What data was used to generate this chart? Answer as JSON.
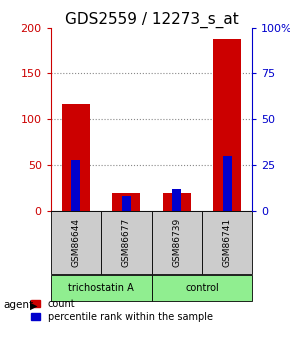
{
  "title": "GDS2559 / 12273_s_at",
  "samples": [
    "GSM86644",
    "GSM86677",
    "GSM86739",
    "GSM86741"
  ],
  "red_values": [
    117,
    20,
    20,
    188
  ],
  "blue_values_pct": [
    28,
    8,
    12,
    30
  ],
  "left_ylim": [
    0,
    200
  ],
  "left_yticks": [
    0,
    50,
    100,
    150,
    200
  ],
  "right_ylim": [
    0,
    100
  ],
  "right_yticks": [
    0,
    25,
    50,
    75,
    100
  ],
  "right_yticklabels": [
    "0",
    "25",
    "50",
    "75",
    "100%"
  ],
  "agents": [
    {
      "label": "trichostatin A"
    },
    {
      "label": "control"
    }
  ],
  "agent_label": "agent",
  "red_bar_width": 0.55,
  "blue_bar_width": 0.18,
  "red_color": "#CC0000",
  "blue_color": "#0000CC",
  "left_tick_color": "#CC0000",
  "right_tick_color": "#0000CC",
  "title_fontsize": 11,
  "tick_fontsize": 8,
  "legend_fontsize": 7,
  "sample_box_color": "#CCCCCC",
  "agent_box_color": "#90EE90",
  "dotted_line_color": "#888888",
  "grid_yticks": [
    50,
    100,
    150
  ]
}
